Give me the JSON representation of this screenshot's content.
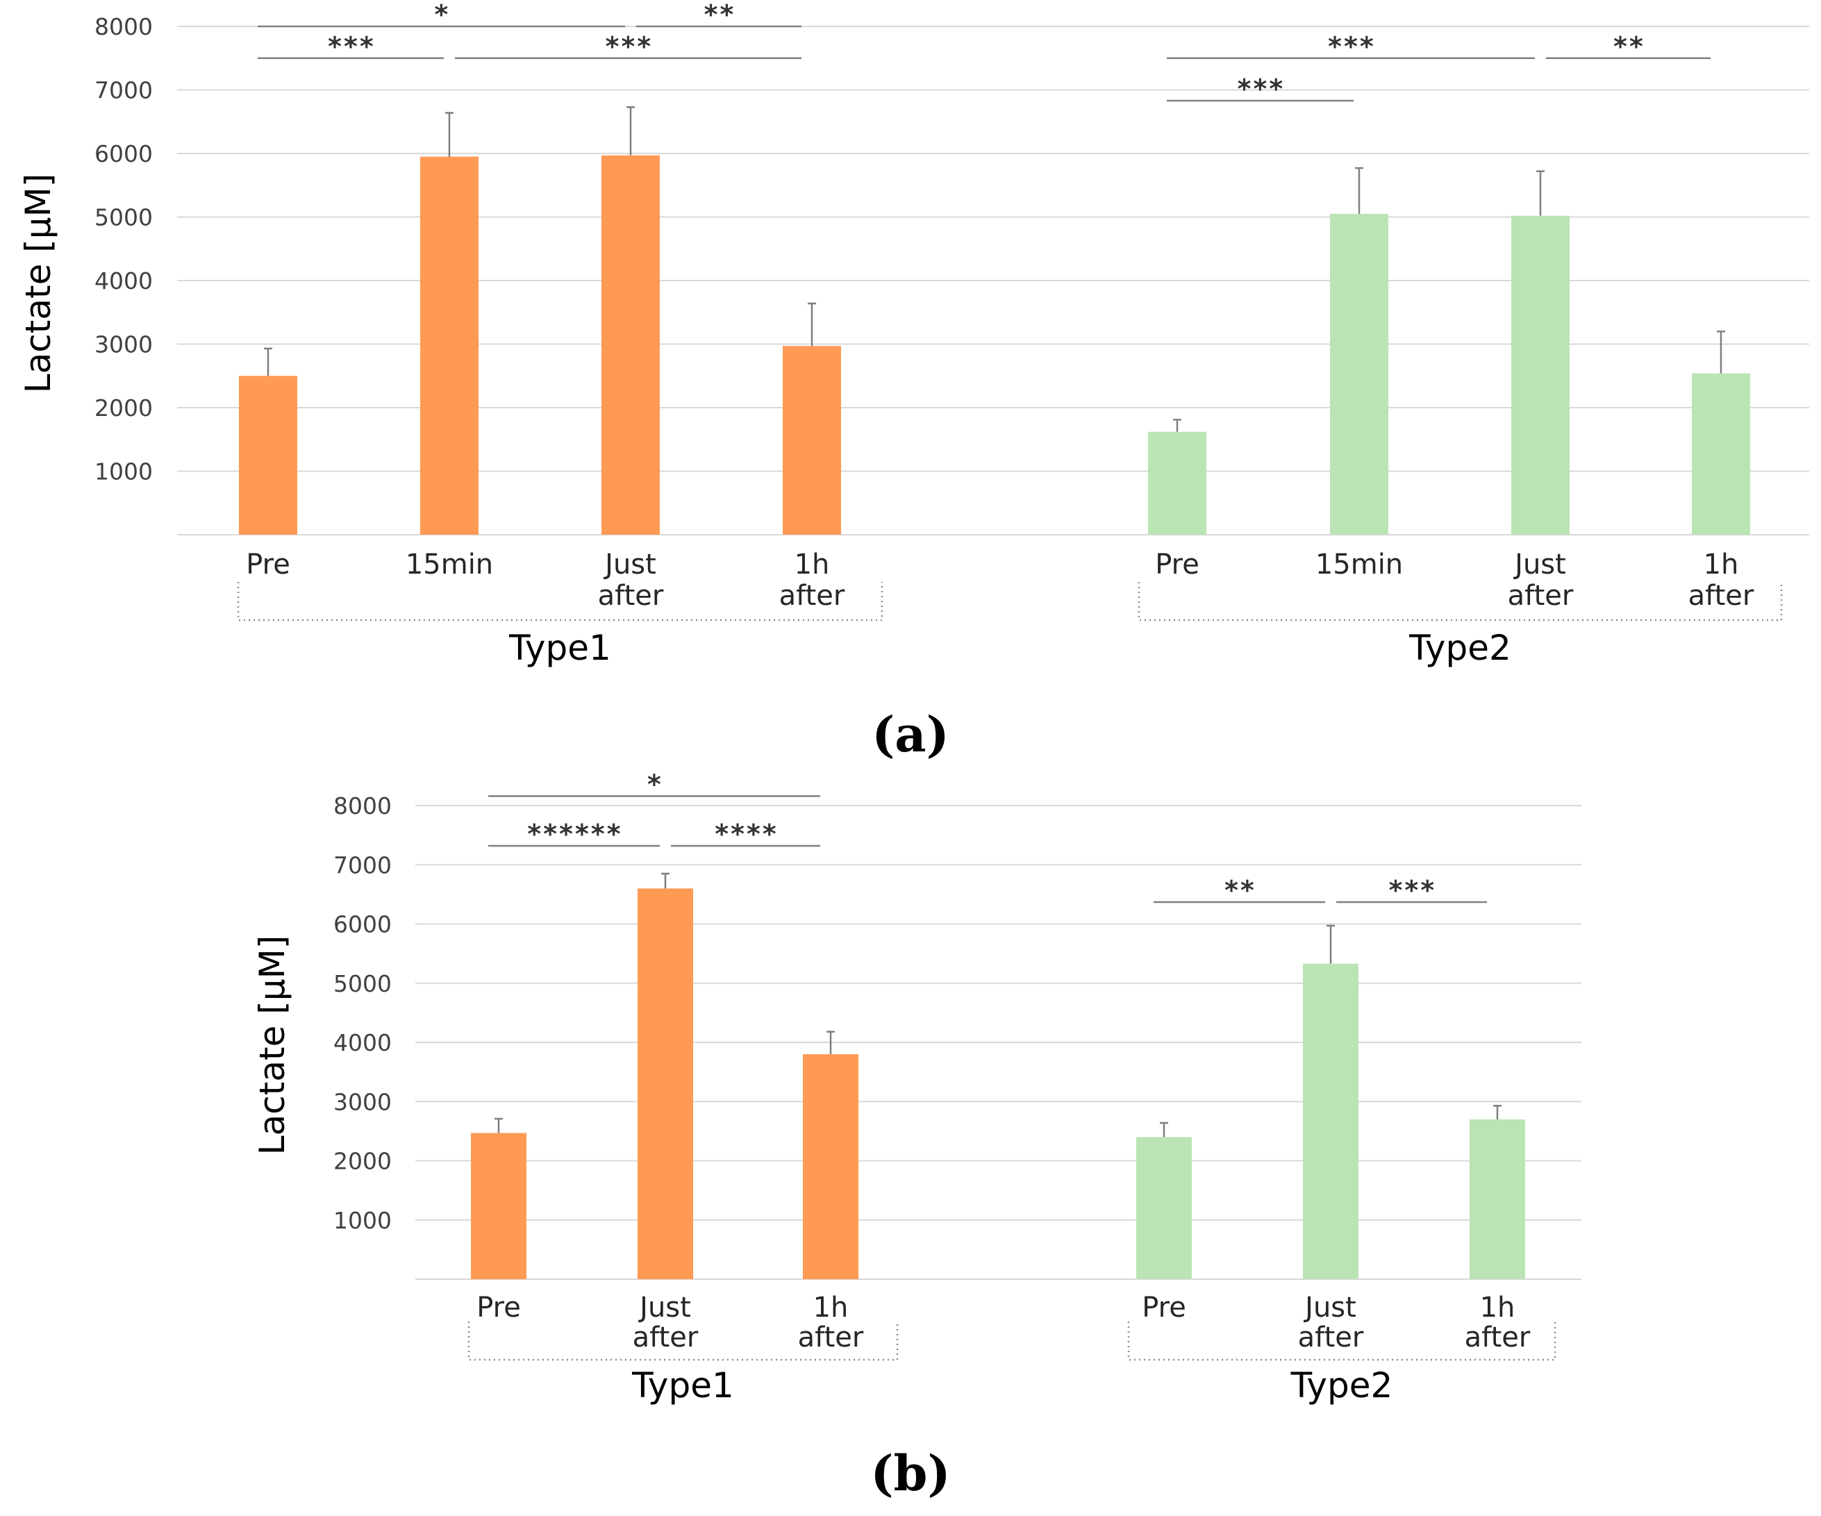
{
  "colors": {
    "type1": "#ff9a55",
    "type2": "#bbe4b5"
  },
  "chart_data": [
    {
      "type": "bar",
      "panel_label": "(a)",
      "ylabel": "Lactate [µM]",
      "ylim": [
        0,
        8000
      ],
      "yticks": [
        1000,
        2000,
        3000,
        4000,
        5000,
        6000,
        7000,
        8000
      ],
      "grid": true,
      "groups": [
        {
          "name": "Type1",
          "color": "#ff9a55",
          "categories": [
            [
              "Pre"
            ],
            [
              "15min"
            ],
            [
              "Just",
              "after"
            ],
            [
              "1h",
              "after"
            ]
          ],
          "values": [
            2500,
            5950,
            5970,
            2970
          ],
          "errors": [
            430,
            690,
            760,
            670
          ]
        },
        {
          "name": "Type2",
          "color": "#bbe4b5",
          "categories": [
            [
              "Pre"
            ],
            [
              "15min"
            ],
            [
              "Just",
              "after"
            ],
            [
              "1h",
              "after"
            ]
          ],
          "values": [
            1620,
            5050,
            5020,
            2540
          ],
          "errors": [
            190,
            720,
            700,
            660
          ]
        }
      ],
      "significance": [
        {
          "group": 0,
          "from": 0,
          "to": 2,
          "label": "*",
          "level": 8000
        },
        {
          "group": 0,
          "from": 2,
          "to": 3,
          "label": "**",
          "level": 8000
        },
        {
          "group": 0,
          "from": 0,
          "to": 1,
          "label": "***",
          "level": 7500
        },
        {
          "group": 0,
          "from": 1,
          "to": 3,
          "label": "***",
          "level": 7500
        },
        {
          "group": 1,
          "from": 0,
          "to": 2,
          "label": "***",
          "level": 7500
        },
        {
          "group": 1,
          "from": 2,
          "to": 3,
          "label": "**",
          "level": 7500
        },
        {
          "group": 1,
          "from": 0,
          "to": 1,
          "label": "***",
          "level": 6830
        }
      ]
    },
    {
      "type": "bar",
      "panel_label": "(b)",
      "ylabel": "Lactate [µM]",
      "ylim": [
        0,
        8000
      ],
      "yticks": [
        1000,
        2000,
        3000,
        4000,
        5000,
        6000,
        7000,
        8000
      ],
      "grid": true,
      "groups": [
        {
          "name": "Type1",
          "color": "#ff9a55",
          "categories": [
            [
              "Pre"
            ],
            [
              "Just",
              "after"
            ],
            [
              "1h",
              "after"
            ]
          ],
          "values": [
            2470,
            6600,
            3800
          ],
          "errors": [
            240,
            250,
            380
          ]
        },
        {
          "name": "Type2",
          "color": "#bbe4b5",
          "categories": [
            [
              "Pre"
            ],
            [
              "Just",
              "after"
            ],
            [
              "1h",
              "after"
            ]
          ],
          "values": [
            2400,
            5330,
            2700
          ],
          "errors": [
            240,
            640,
            230
          ]
        }
      ],
      "significance": [
        {
          "group": 0,
          "from": 0,
          "to": 2,
          "label": "*",
          "level": 8160
        },
        {
          "group": 0,
          "from": 0,
          "to": 1,
          "label": "******",
          "level": 7320
        },
        {
          "group": 0,
          "from": 1,
          "to": 2,
          "label": "****",
          "level": 7320
        },
        {
          "group": 1,
          "from": 0,
          "to": 1,
          "label": "**",
          "level": 6370
        },
        {
          "group": 1,
          "from": 1,
          "to": 2,
          "label": "***",
          "level": 6370
        }
      ]
    }
  ]
}
